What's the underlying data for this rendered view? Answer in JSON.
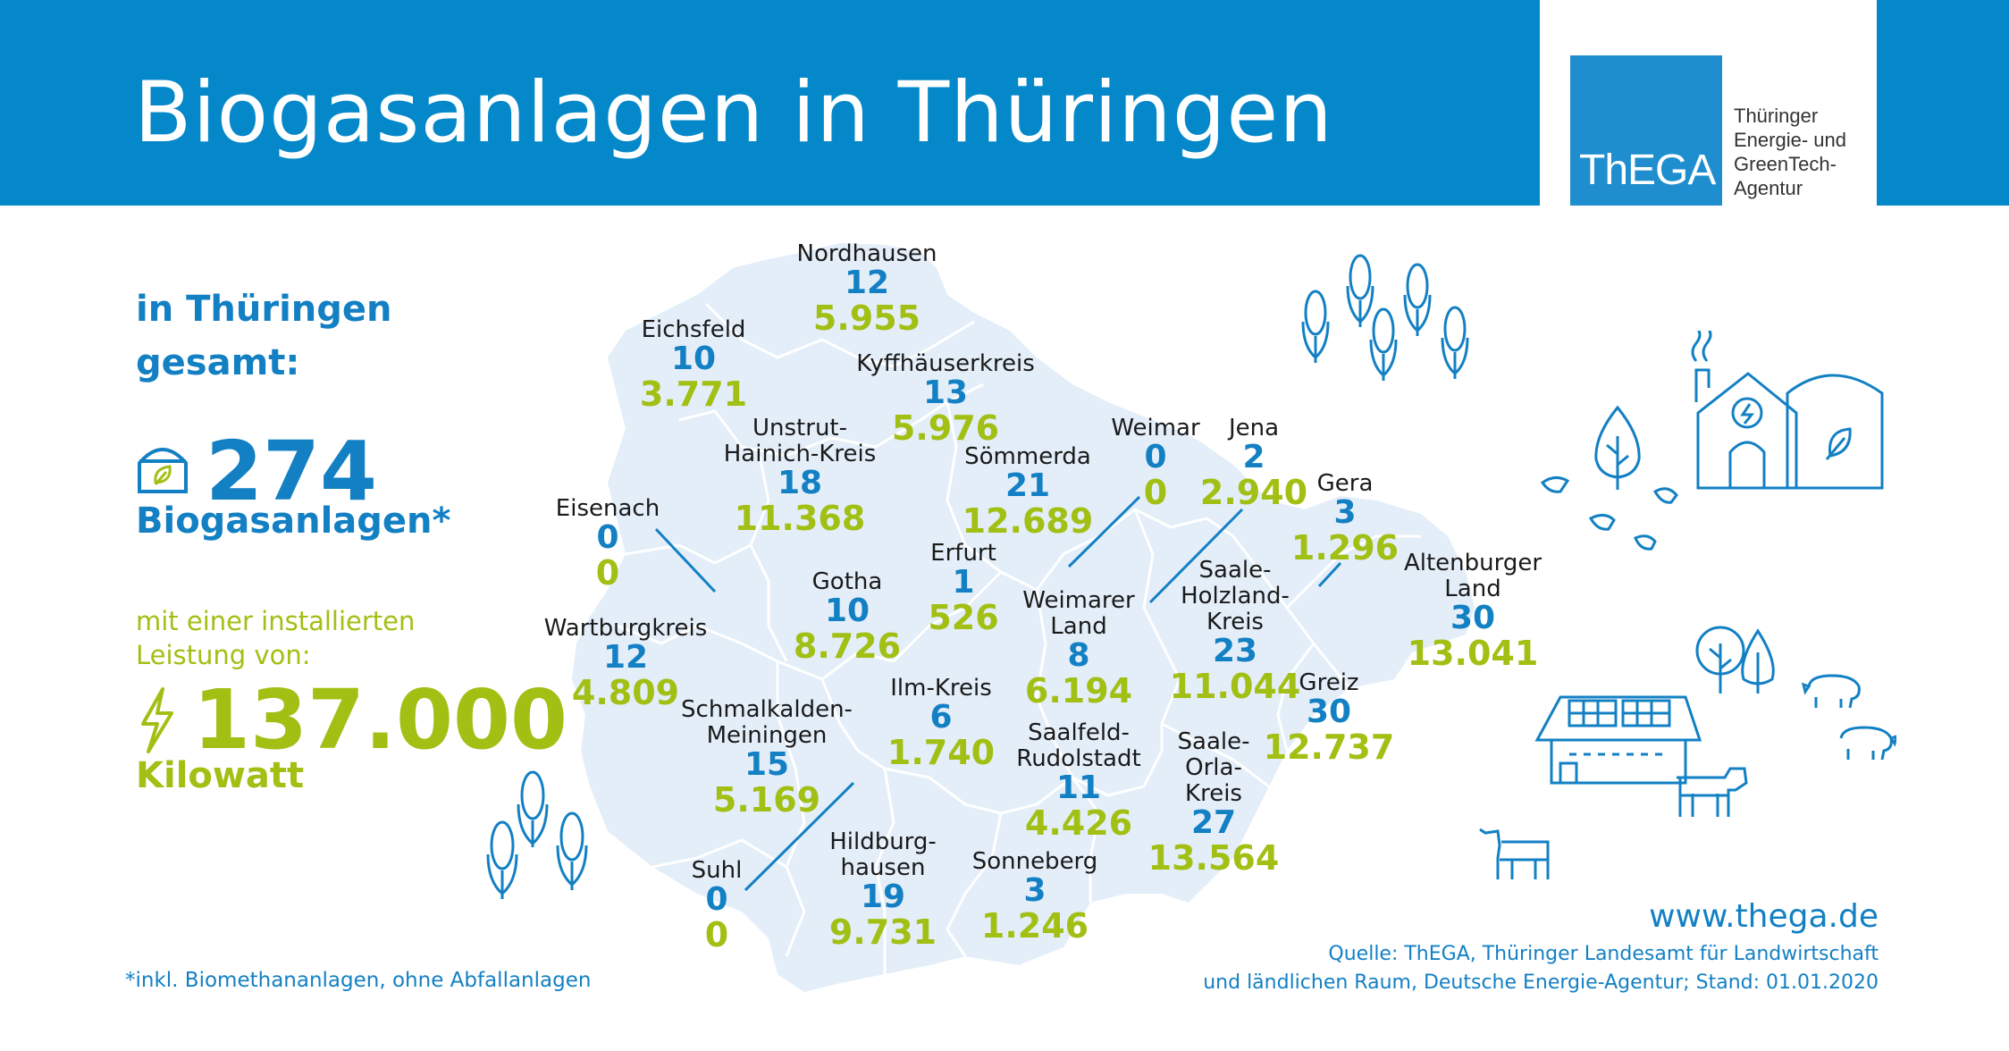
{
  "header": {
    "title": "Biogasanlagen in Thüringen",
    "logo": {
      "word": "ThEGA",
      "lines": [
        "Thüringer",
        "Energie- und",
        "GreenTech-",
        "Agentur"
      ]
    }
  },
  "summary": {
    "heading_line1": "in Thüringen",
    "heading_line2": "gesamt:",
    "plant_count": "274",
    "plant_label": "Biogasanlagen*",
    "power_intro_line1": "mit einer installierten",
    "power_intro_line2": "Leistung von:",
    "power_value": "137.000",
    "power_unit": "Kilowatt"
  },
  "regions": [
    {
      "name_lines": [
        "Nordhausen"
      ],
      "count": "12",
      "power": "5.955"
    },
    {
      "name_lines": [
        "Eichsfeld"
      ],
      "count": "10",
      "power": "3.771"
    },
    {
      "name_lines": [
        "Kyffhäuserkreis"
      ],
      "count": "13",
      "power": "5.976"
    },
    {
      "name_lines": [
        "Unstrut-",
        "Hainich-Kreis"
      ],
      "count": "18",
      "power": "11.368"
    },
    {
      "name_lines": [
        "Sömmerda"
      ],
      "count": "21",
      "power": "12.689"
    },
    {
      "name_lines": [
        "Weimar"
      ],
      "count": "0",
      "power": "0"
    },
    {
      "name_lines": [
        "Jena"
      ],
      "count": "2",
      "power": "2.940"
    },
    {
      "name_lines": [
        "Gera"
      ],
      "count": "3",
      "power": "1.296"
    },
    {
      "name_lines": [
        "Eisenach"
      ],
      "count": "0",
      "power": "0"
    },
    {
      "name_lines": [
        "Erfurt"
      ],
      "count": "1",
      "power": "526"
    },
    {
      "name_lines": [
        "Gotha"
      ],
      "count": "10",
      "power": "8.726"
    },
    {
      "name_lines": [
        "Weimarer",
        "Land"
      ],
      "count": "8",
      "power": "6.194"
    },
    {
      "name_lines": [
        "Saale-",
        "Holzland-",
        "Kreis"
      ],
      "count": "23",
      "power": "11.044"
    },
    {
      "name_lines": [
        "Altenburger",
        "Land"
      ],
      "count": "30",
      "power": "13.041"
    },
    {
      "name_lines": [
        "Wartburgkreis"
      ],
      "count": "12",
      "power": "4.809"
    },
    {
      "name_lines": [
        "Greiz"
      ],
      "count": "30",
      "power": "12.737"
    },
    {
      "name_lines": [
        "Schmalkalden-",
        "Meiningen"
      ],
      "count": "15",
      "power": "5.169"
    },
    {
      "name_lines": [
        "Ilm-Kreis"
      ],
      "count": "6",
      "power": "1.740"
    },
    {
      "name_lines": [
        "Saalfeld-",
        "Rudolstadt"
      ],
      "count": "11",
      "power": "4.426"
    },
    {
      "name_lines": [
        "Saale-",
        "Orla-",
        "Kreis"
      ],
      "count": "27",
      "power": "13.564"
    },
    {
      "name_lines": [
        "Suhl"
      ],
      "count": "0",
      "power": "0"
    },
    {
      "name_lines": [
        "Hildburg-",
        "hausen"
      ],
      "count": "19",
      "power": "9.731"
    },
    {
      "name_lines": [
        "Sonneberg"
      ],
      "count": "3",
      "power": "1.246"
    }
  ],
  "footer": {
    "footnote": "*inkl. Biomethananlagen, ohne Abfallanlagen",
    "url": "www.thega.de",
    "source_line1": "Quelle: ThEGA, Thüringer Landesamt für Landwirtschaft",
    "source_line2": "und ländlichen Raum, Deutsche Energie-Agentur; Stand: 01.01.2020"
  },
  "colors": {
    "primary_blue": "#0588c9",
    "text_blue": "#1380c4",
    "accent_green": "#a2bf14",
    "map_fill": "#e3eef9"
  },
  "icons": [
    "biogas-plant-icon",
    "lightning-icon",
    "corn-icon",
    "tree-icon",
    "farm-building-icon",
    "cow-icon",
    "pig-icon",
    "chicken-icon"
  ]
}
